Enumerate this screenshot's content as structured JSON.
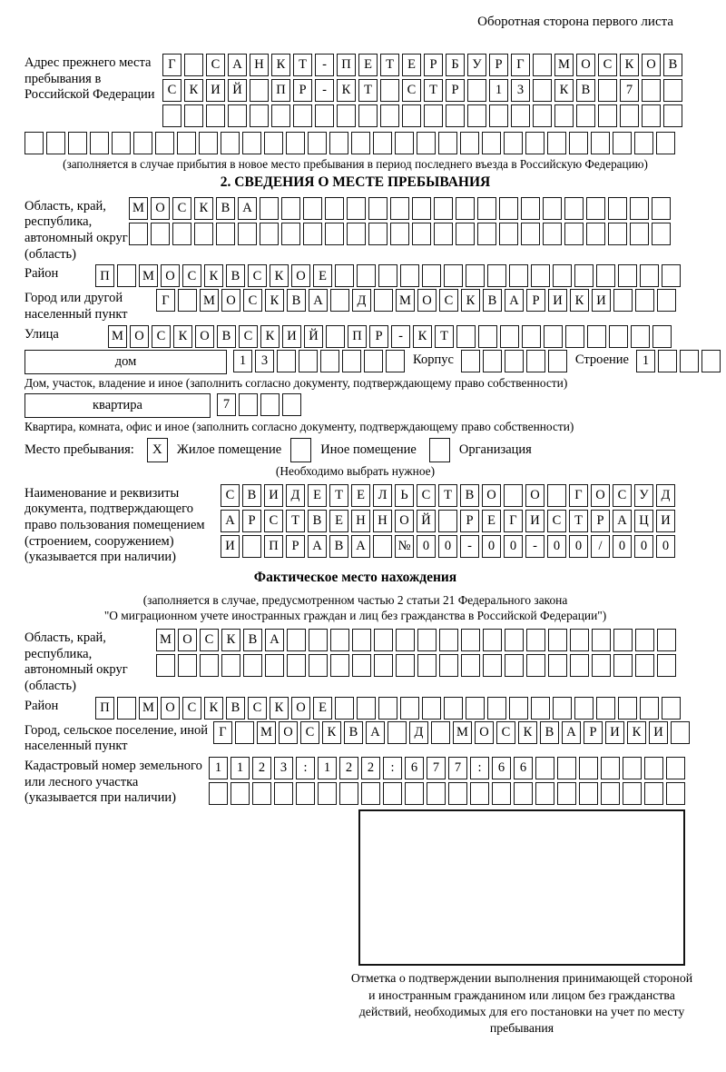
{
  "page": {
    "corner_note": "Оборотная сторона первого листа"
  },
  "prev_address": {
    "label": "Адрес прежнего места пребывания в Российской Федерации",
    "rows": [
      {
        "chars": "Г САНКТ-ПЕТЕРБУРГ МОСКОВ",
        "count": 24
      },
      {
        "chars": "СКИЙ ПР-КТ СТР 13 КВ 7",
        "count": 24
      },
      {
        "chars": "",
        "count": 24
      }
    ],
    "overflow_row": {
      "chars": "",
      "count": 30
    },
    "note": "(заполняется в случае прибытия в новое место пребывания в период последнего въезда в Российскую Федерацию)"
  },
  "section2": {
    "heading": "2. СВЕДЕНИЯ О МЕСТЕ ПРЕБЫВАНИЯ",
    "region": {
      "label": "Область, край, республика, автономный округ (область)",
      "rows": [
        {
          "chars": "МОСКВА",
          "count": 25
        },
        {
          "chars": "",
          "count": 25
        }
      ]
    },
    "district": {
      "label": "Район",
      "row": {
        "chars": "П МОСКВСКОЕ",
        "count": 27
      }
    },
    "city": {
      "label": "Город или другой населенный пункт",
      "row": {
        "chars": "Г МОСКВА Д МОСКВАРИКИ",
        "count": 24
      }
    },
    "street": {
      "label": "Улица",
      "row": {
        "chars": "МОСКОВСКИЙ ПР-КТ",
        "count": 26
      }
    },
    "house": {
      "box_label": "дом",
      "cells": {
        "chars": "13",
        "count": 8
      },
      "korpus_label": "Корпус",
      "korpus_cells": {
        "chars": "",
        "count": 5
      },
      "stroenie_label": "Строение",
      "stroenie_cells": {
        "chars": "1",
        "count": 4
      },
      "note": "Дом, участок, владение и иное (заполнить согласно документу, подтверждающему право собственности)"
    },
    "apartment": {
      "box_label": "квартира",
      "cells": {
        "chars": "7",
        "count": 4
      },
      "note": "Квартира, комната, офис и иное (заполнить согласно документу, подтверждающему право собственности)"
    },
    "stay_type": {
      "label": "Место пребывания:",
      "options": [
        {
          "label": "Жилое помещение",
          "checked": "X"
        },
        {
          "label": "Иное помещение",
          "checked": ""
        },
        {
          "label": "Организация",
          "checked": ""
        }
      ],
      "note": "(Необходимо выбрать нужное)"
    },
    "document": {
      "label": "Наименование и реквизиты документа, подтверждающего право пользования помещением (строением, сооружением) (указывается при наличии)",
      "rows": [
        {
          "chars": "СВИДЕТЕЛЬСТВО О ГОСУД",
          "count": 21
        },
        {
          "chars": "АРСТВЕННОЙ РЕГИСТРАЦИ",
          "count": 21
        },
        {
          "chars": "И ПРАВА №00-00-00/000",
          "count": 21
        }
      ]
    }
  },
  "actual_location": {
    "heading": "Фактическое место нахождения",
    "note_line1": "(заполняется в случае, предусмотренном частью 2 статьи 21 Федерального закона",
    "note_line2": "\"О миграционном учете иностранных граждан и лиц без гражданства в Российской Федерации\")",
    "region": {
      "label": "Область, край, республика, автономный округ (область)",
      "rows": [
        {
          "chars": "МОСКВА",
          "count": 24
        },
        {
          "chars": "",
          "count": 24
        }
      ]
    },
    "district": {
      "label": "Район",
      "row": {
        "chars": "П МОСКВСКОЕ",
        "count": 27
      }
    },
    "city": {
      "label": "Город, сельское поселение, иной населенный пункт",
      "row": {
        "chars": "Г МОСКВА Д МОСКВАРИКИ",
        "count": 22
      }
    },
    "cadastre": {
      "label": "Кадастровый номер земельного или лесного участка (указывается при наличии)",
      "rows": [
        {
          "chars": "1123:122:677:66",
          "count": 22
        },
        {
          "chars": "",
          "count": 22
        }
      ]
    }
  },
  "stamp": {
    "caption": "Отметка о подтверждении выполнения принимающей стороной и иностранным гражданином или лицом без гражданства действий, необходимых для его постановки на учет по месту пребывания"
  }
}
